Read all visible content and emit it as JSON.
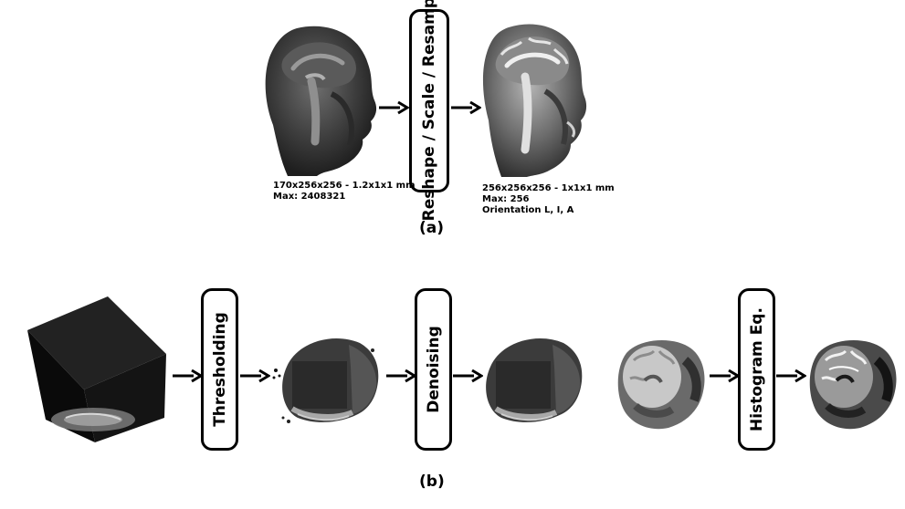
{
  "panel_a": {
    "label": "(a)",
    "step_label": "Reshape / Scale / Resample",
    "input_info": [
      "170x256x256 - 1.2x1x1 mm",
      "Max: 2408321"
    ],
    "output_info": [
      "256x256x256 - 1x1x1 mm",
      "Max:  256",
      "Orientation  L, I,  A"
    ],
    "images": [
      "head-sagittal-raw",
      "head-sagittal-processed"
    ]
  },
  "panel_b": {
    "label": "(b)",
    "steps": [
      "Thresholding",
      "Denoising",
      "Histogram Eq."
    ],
    "images": [
      "raw-volume-cube",
      "head-thresholded",
      "head-denoised",
      "head-coronal-before-equalization",
      "head-coronal-equalized"
    ]
  }
}
